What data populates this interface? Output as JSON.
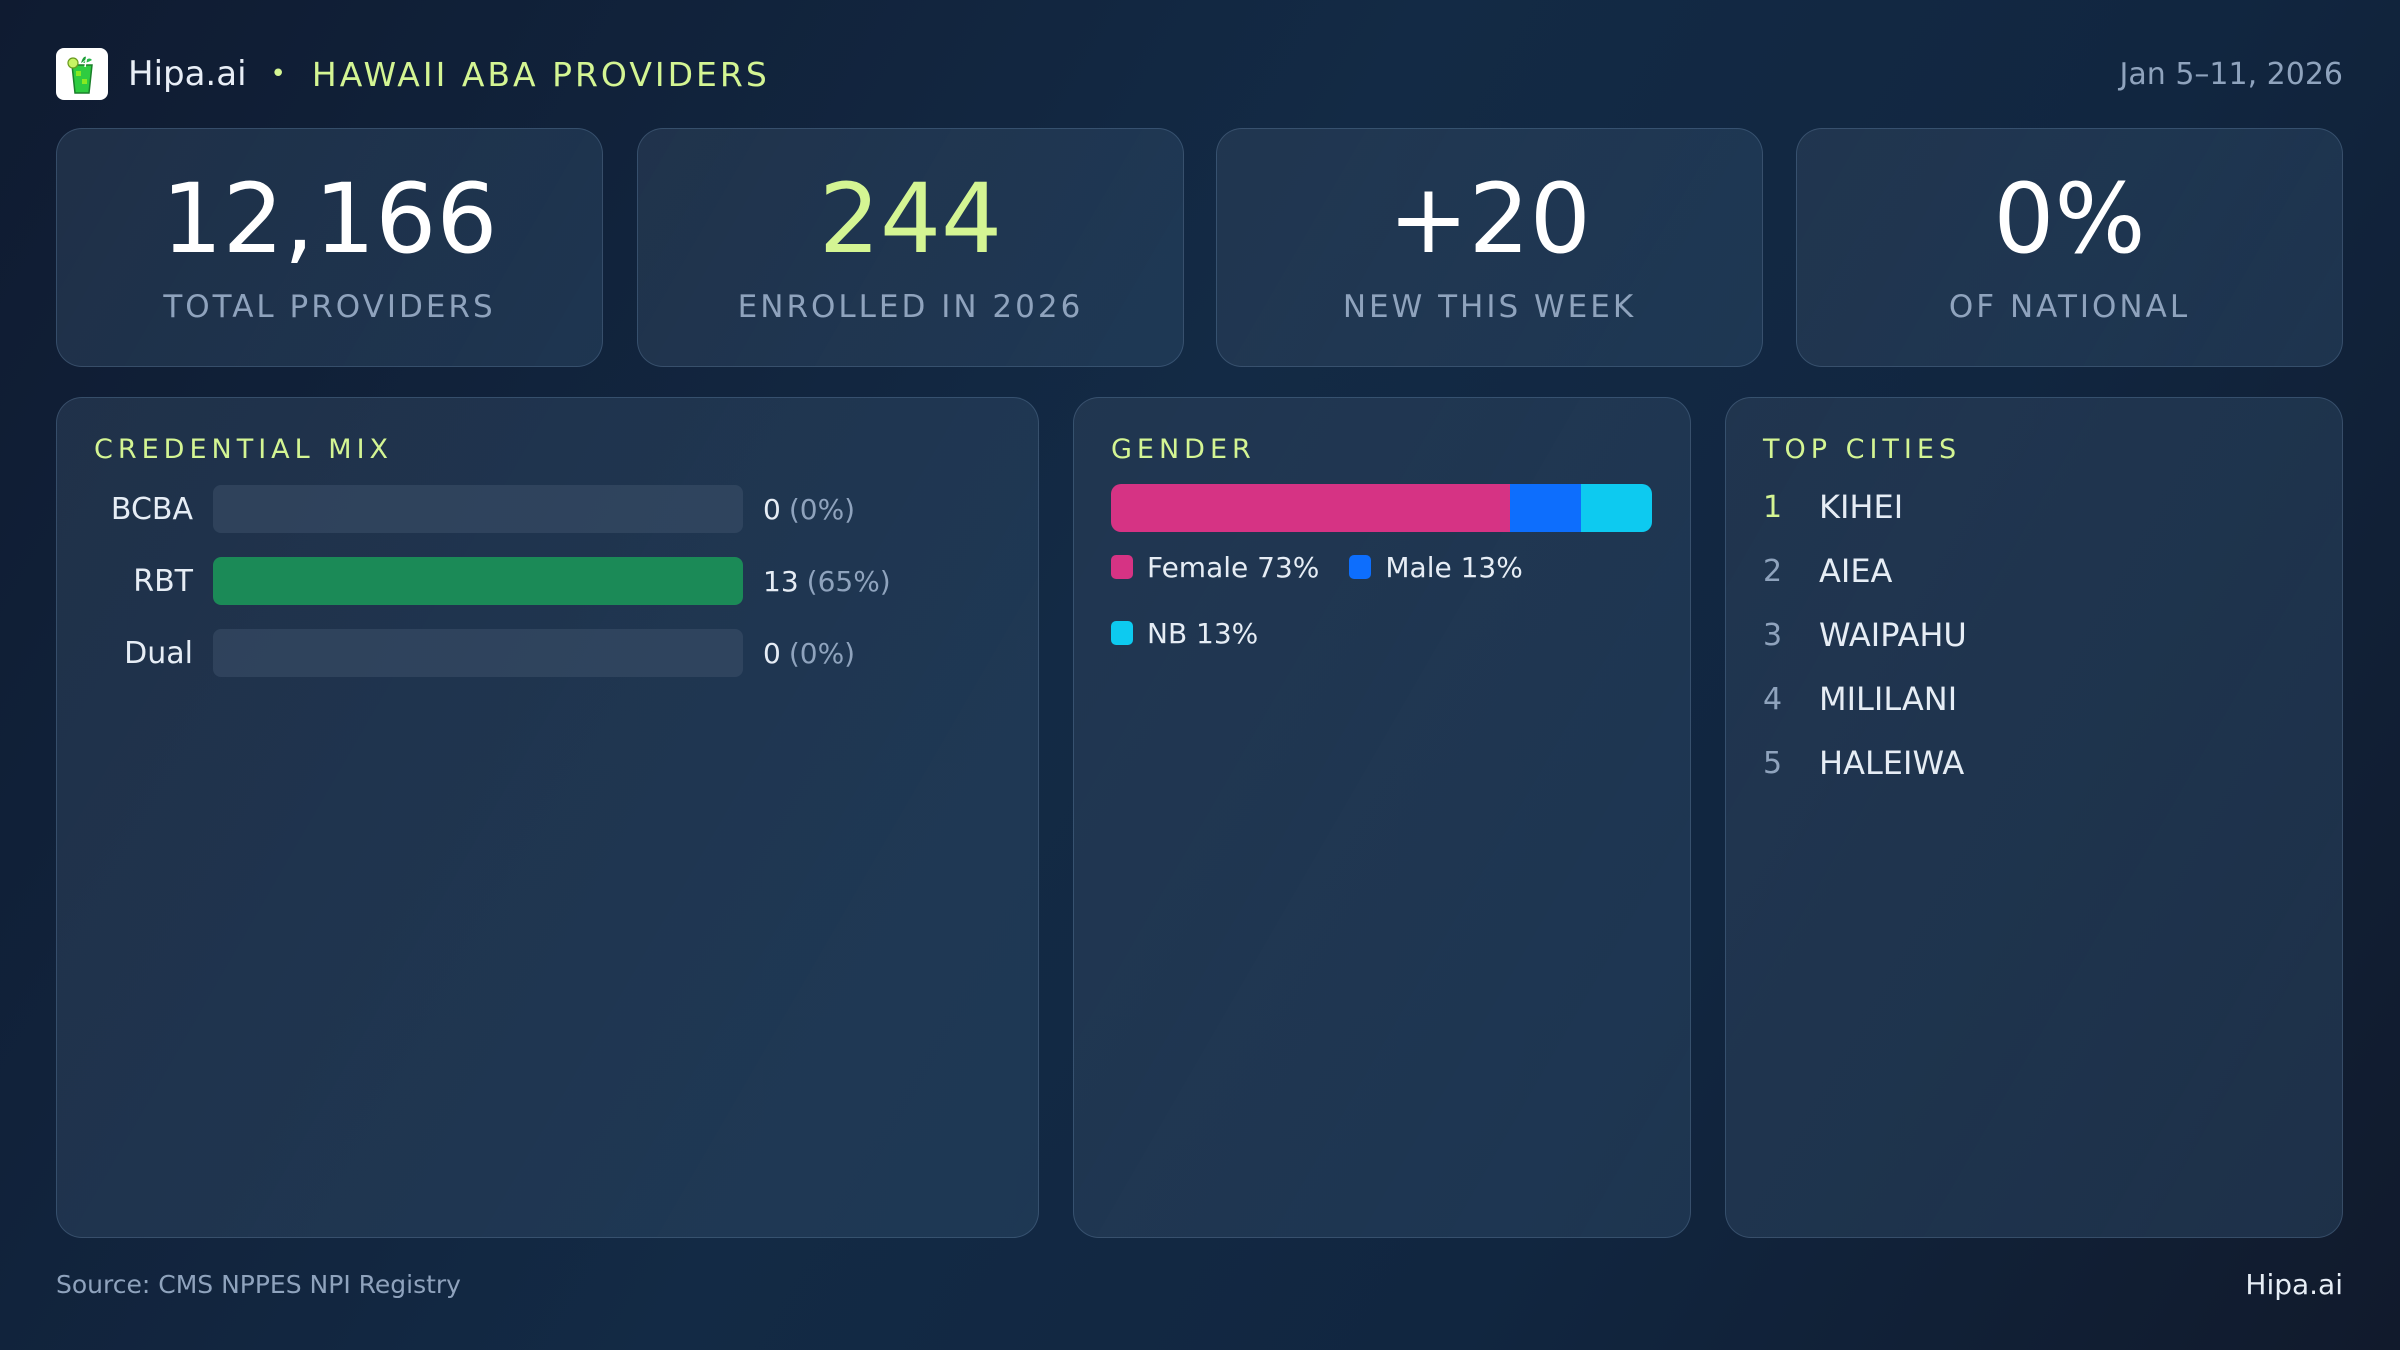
{
  "header": {
    "brand": "Hipa.ai",
    "separator": "•",
    "title": "HAWAII ABA PROVIDERS",
    "date_range": "Jan 5–11, 2026",
    "logo_icon": "mojito-glass-icon"
  },
  "kpis": [
    {
      "value": "12,166",
      "label": "TOTAL PROVIDERS"
    },
    {
      "value": "244",
      "label": "ENROLLED IN 2026"
    },
    {
      "value": "+20",
      "label": "NEW THIS WEEK"
    },
    {
      "value": "0%",
      "label": "OF NATIONAL"
    }
  ],
  "credential_mix": {
    "title": "CREDENTIAL MIX",
    "rows": [
      {
        "label": "BCBA",
        "count": "0",
        "pct": "(0%)",
        "fill": 0
      },
      {
        "label": "RBT",
        "count": "13",
        "pct": "(65%)",
        "fill": 100
      },
      {
        "label": "Dual",
        "count": "0",
        "pct": "(0%)",
        "fill": 0
      }
    ],
    "bar_color": "#1b8a57"
  },
  "gender": {
    "title": "GENDER",
    "segments": [
      {
        "label": "Female 73%",
        "value": 73,
        "color": "#d63384"
      },
      {
        "label": "Male 13%",
        "value": 13,
        "color": "#0d6efd"
      },
      {
        "label": "NB 13%",
        "value": 13,
        "color": "#0dcaf0"
      }
    ]
  },
  "top_cities": {
    "title": "TOP CITIES",
    "items": [
      {
        "rank": "1",
        "name": "KIHEI"
      },
      {
        "rank": "2",
        "name": "AIEA"
      },
      {
        "rank": "3",
        "name": "WAIPAHU"
      },
      {
        "rank": "4",
        "name": "MILILANI"
      },
      {
        "rank": "5",
        "name": "HALEIWA"
      }
    ]
  },
  "footer": {
    "source": "Source: CMS NPPES NPI Registry",
    "brand": "Hipa.ai"
  },
  "colors": {
    "accent": "#d4f593",
    "muted": "#8fa3bd",
    "rbt_green": "#1b8a57",
    "female": "#d63384",
    "male": "#0d6efd",
    "nb": "#0dcaf0"
  }
}
